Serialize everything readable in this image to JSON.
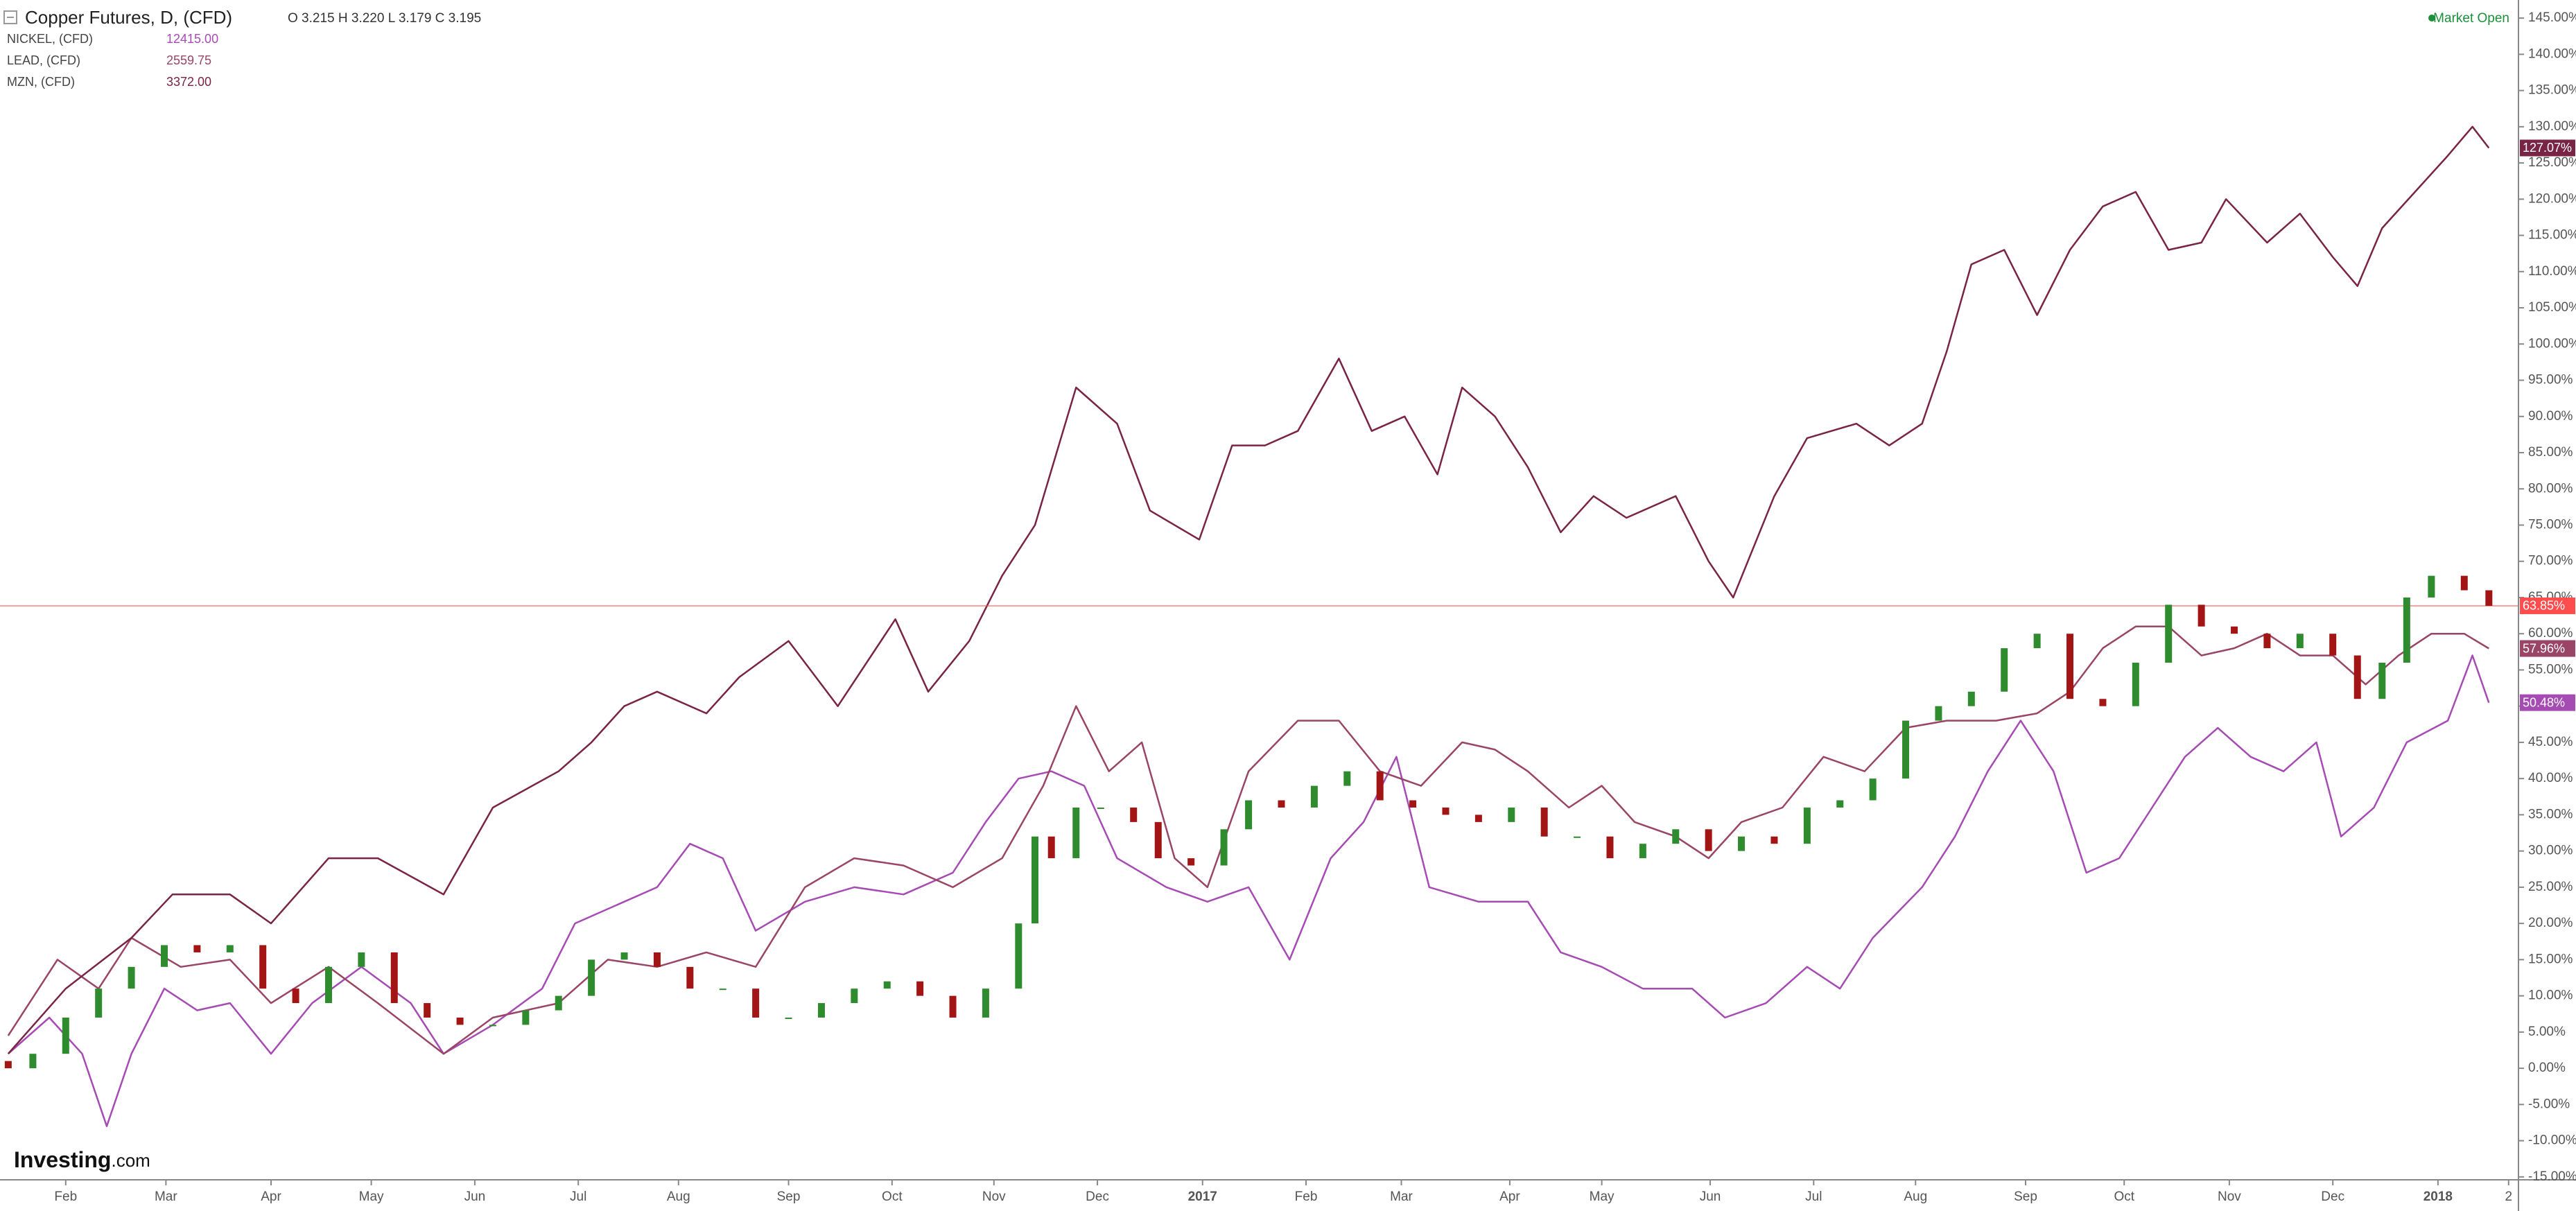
{
  "chart_data": {
    "type": "line",
    "title": "Copper Futures, D, (CFD)",
    "ohlc": "O 3.215  H 3.220  L 3.179  C 3.195",
    "status": "Market Open",
    "logo_main": "Investing",
    "logo_suffix": ".com",
    "grid": true,
    "xlim": [
      0,
      1533
    ],
    "ylim": [
      -15.4,
      147.5
    ],
    "xticks": [
      {
        "value": 40,
        "label": "Feb"
      },
      {
        "value": 101,
        "label": "Mar"
      },
      {
        "value": 165,
        "label": "Apr"
      },
      {
        "value": 226,
        "label": "May"
      },
      {
        "value": 289,
        "label": "Jun"
      },
      {
        "value": 352,
        "label": "Jul"
      },
      {
        "value": 413,
        "label": "Aug"
      },
      {
        "value": 480,
        "label": "Sep"
      },
      {
        "value": 543,
        "label": "Oct"
      },
      {
        "value": 605,
        "label": "Nov"
      },
      {
        "value": 668,
        "label": "Dec"
      },
      {
        "value": 732,
        "label": "2017"
      },
      {
        "value": 795,
        "label": "Feb"
      },
      {
        "value": 853,
        "label": "Mar"
      },
      {
        "value": 919,
        "label": "Apr"
      },
      {
        "value": 975,
        "label": "May"
      },
      {
        "value": 1041,
        "label": "Jun"
      },
      {
        "value": 1104,
        "label": "Jul"
      },
      {
        "value": 1166,
        "label": "Aug"
      },
      {
        "value": 1233,
        "label": "Sep"
      },
      {
        "value": 1293,
        "label": "Oct"
      },
      {
        "value": 1357,
        "label": "Nov"
      },
      {
        "value": 1420,
        "label": "Dec"
      },
      {
        "value": 1484,
        "label": "2018"
      },
      {
        "value": 1527,
        "label": "2"
      }
    ],
    "yticks": [
      {
        "value": -15,
        "label": "-15.00%"
      },
      {
        "value": -10,
        "label": "-10.00%"
      },
      {
        "value": -5,
        "label": "-5.00%"
      },
      {
        "value": 0,
        "label": "0.00%"
      },
      {
        "value": 5,
        "label": "5.00%"
      },
      {
        "value": 10,
        "label": "10.00%"
      },
      {
        "value": 15,
        "label": "15.00%"
      },
      {
        "value": 20,
        "label": "20.00%"
      },
      {
        "value": 25,
        "label": "25.00%"
      },
      {
        "value": 30,
        "label": "30.00%"
      },
      {
        "value": 35,
        "label": "35.00%"
      },
      {
        "value": 40,
        "label": "40.00%"
      },
      {
        "value": 45,
        "label": "45.00%"
      },
      {
        "value": 50,
        "label": "50.00%"
      },
      {
        "value": 55,
        "label": "55.00%"
      },
      {
        "value": 60,
        "label": "60.00%"
      },
      {
        "value": 65,
        "label": "65.00%"
      },
      {
        "value": 70,
        "label": "70.00%"
      },
      {
        "value": 75,
        "label": "75.00%"
      },
      {
        "value": 80,
        "label": "80.00%"
      },
      {
        "value": 85,
        "label": "85.00%"
      },
      {
        "value": 90,
        "label": "90.00%"
      },
      {
        "value": 95,
        "label": "95.00%"
      },
      {
        "value": 100,
        "label": "100.00%"
      },
      {
        "value": 105,
        "label": "105.00%"
      },
      {
        "value": 110,
        "label": "110.00%"
      },
      {
        "value": 115,
        "label": "115.00%"
      },
      {
        "value": 120,
        "label": "120.00%"
      },
      {
        "value": 125,
        "label": "125.00%"
      },
      {
        "value": 130,
        "label": "130.00%"
      },
      {
        "value": 135,
        "label": "135.00%"
      },
      {
        "value": 140,
        "label": "140.00%"
      },
      {
        "value": 145,
        "label": "145.00%"
      }
    ],
    "candles": {
      "up_color": "#2e8b2e",
      "down_color": "#a31515",
      "line_color": "#ff4d4d",
      "last_label": "63.85%",
      "x": [
        5,
        20,
        40,
        60,
        80,
        100,
        120,
        140,
        160,
        180,
        200,
        220,
        240,
        260,
        280,
        300,
        320,
        340,
        360,
        380,
        400,
        420,
        440,
        460,
        480,
        500,
        520,
        540,
        560,
        580,
        600,
        620,
        630,
        640,
        655,
        670,
        690,
        705,
        725,
        745,
        760,
        780,
        800,
        820,
        840,
        860,
        880,
        900,
        920,
        940,
        960,
        980,
        1000,
        1020,
        1040,
        1060,
        1080,
        1100,
        1120,
        1140,
        1160,
        1180,
        1200,
        1220,
        1240,
        1260,
        1280,
        1300,
        1320,
        1340,
        1360,
        1380,
        1400,
        1420,
        1435,
        1450,
        1465,
        1480,
        1500,
        1515
      ],
      "open": [
        1,
        0,
        2,
        7,
        11,
        14,
        17,
        16,
        17,
        11,
        9,
        14,
        16,
        9,
        7,
        6,
        6,
        8,
        10,
        15,
        16,
        14,
        11,
        11,
        7,
        7,
        9,
        11,
        12,
        10,
        7,
        11,
        20,
        32,
        29,
        36,
        36,
        34,
        29,
        28,
        33,
        37,
        36,
        39,
        41,
        37,
        36,
        35,
        34,
        36,
        32,
        32,
        29,
        31,
        33,
        30,
        32,
        31,
        36,
        37,
        40,
        48,
        50,
        52,
        58,
        60,
        51,
        50,
        56,
        64,
        61,
        60,
        58,
        60,
        57,
        51,
        56,
        65,
        68,
        66
      ],
      "close": [
        0,
        2,
        7,
        11,
        14,
        17,
        16,
        17,
        11,
        9,
        14,
        16,
        9,
        7,
        6,
        6,
        8,
        10,
        15,
        16,
        14,
        11,
        11,
        7,
        7,
        9,
        11,
        12,
        10,
        7,
        11,
        20,
        32,
        29,
        36,
        36,
        34,
        29,
        28,
        33,
        37,
        36,
        39,
        41,
        37,
        36,
        35,
        34,
        36,
        32,
        32,
        29,
        31,
        33,
        30,
        32,
        31,
        36,
        37,
        40,
        48,
        50,
        52,
        58,
        60,
        51,
        50,
        56,
        64,
        61,
        60,
        58,
        60,
        57,
        51,
        56,
        65,
        68,
        66,
        63.85
      ]
    },
    "series": [
      {
        "name": "NICKEL, (CFD)",
        "price": "12415.00",
        "color": "#a54bb3",
        "last_label": "50.48%",
        "x": [
          5,
          30,
          50,
          65,
          80,
          100,
          120,
          140,
          165,
          190,
          220,
          250,
          270,
          300,
          330,
          350,
          380,
          400,
          420,
          440,
          460,
          490,
          520,
          550,
          580,
          600,
          620,
          640,
          660,
          680,
          710,
          735,
          760,
          785,
          810,
          830,
          850,
          870,
          900,
          930,
          950,
          975,
          1000,
          1030,
          1050,
          1075,
          1100,
          1120,
          1140,
          1170,
          1190,
          1210,
          1230,
          1250,
          1270,
          1290,
          1310,
          1330,
          1350,
          1370,
          1390,
          1410,
          1425,
          1445,
          1465,
          1490,
          1505,
          1515
        ],
        "values": [
          2,
          7,
          2,
          -8,
          2,
          11,
          8,
          9,
          2,
          9,
          14,
          9,
          2,
          6,
          11,
          20,
          23,
          25,
          31,
          29,
          19,
          23,
          25,
          24,
          27,
          34,
          40,
          41,
          39,
          29,
          25,
          23,
          25,
          15,
          29,
          34,
          43,
          25,
          23,
          23,
          16,
          14,
          11,
          11,
          7,
          9,
          14,
          11,
          18,
          25,
          32,
          41,
          48,
          41,
          27,
          29,
          36,
          43,
          47,
          43,
          41,
          45,
          32,
          36,
          45,
          48,
          57,
          50.48
        ]
      },
      {
        "name": "LEAD, (CFD)",
        "price": "2559.75",
        "color": "#9a4466",
        "last_label": "57.96%",
        "x": [
          5,
          35,
          60,
          80,
          110,
          140,
          165,
          200,
          230,
          270,
          300,
          340,
          370,
          400,
          430,
          460,
          490,
          520,
          550,
          580,
          610,
          635,
          655,
          675,
          695,
          715,
          735,
          760,
          790,
          815,
          840,
          865,
          890,
          910,
          930,
          955,
          975,
          995,
          1020,
          1040,
          1060,
          1085,
          1110,
          1135,
          1160,
          1185,
          1215,
          1240,
          1260,
          1280,
          1300,
          1320,
          1340,
          1360,
          1380,
          1400,
          1420,
          1440,
          1460,
          1480,
          1500,
          1515
        ],
        "values": [
          4.5,
          15,
          11,
          18,
          14,
          15,
          9,
          14,
          9,
          2,
          7,
          9,
          15,
          14,
          16,
          14,
          25,
          29,
          28,
          25,
          29,
          39,
          50,
          41,
          45,
          29,
          25,
          41,
          48,
          48,
          41,
          39,
          45,
          44,
          41,
          36,
          39,
          34,
          32,
          29,
          34,
          36,
          43,
          41,
          47,
          48,
          48,
          49,
          52,
          58,
          61,
          61,
          57,
          58,
          60,
          57,
          57,
          53,
          57,
          60,
          60,
          57.96
        ]
      },
      {
        "name": "MZN, (CFD)",
        "price": "3372.00",
        "color": "#7a2445",
        "last_label": "127.07%",
        "x": [
          5,
          40,
          80,
          105,
          140,
          165,
          200,
          230,
          270,
          300,
          340,
          360,
          380,
          400,
          430,
          450,
          480,
          510,
          545,
          565,
          590,
          610,
          630,
          655,
          680,
          700,
          730,
          750,
          770,
          790,
          815,
          835,
          855,
          875,
          890,
          910,
          930,
          950,
          970,
          990,
          1020,
          1040,
          1055,
          1080,
          1100,
          1130,
          1150,
          1170,
          1185,
          1200,
          1220,
          1240,
          1260,
          1280,
          1300,
          1320,
          1340,
          1355,
          1380,
          1400,
          1420,
          1435,
          1450,
          1470,
          1490,
          1505,
          1515
        ],
        "values": [
          2,
          11,
          18,
          24,
          24,
          20,
          29,
          29,
          24,
          36,
          41,
          45,
          50,
          52,
          49,
          54,
          59,
          50,
          62,
          52,
          59,
          68,
          75,
          94,
          89,
          77,
          73,
          86,
          86,
          88,
          98,
          88,
          90,
          82,
          94,
          90,
          83,
          74,
          79,
          76,
          79,
          70,
          65,
          79,
          87,
          89,
          86,
          89,
          99,
          111,
          113,
          104,
          113,
          119,
          121,
          113,
          114,
          120,
          114,
          118,
          112,
          108,
          116,
          121,
          126,
          130,
          127.07
        ]
      }
    ]
  }
}
